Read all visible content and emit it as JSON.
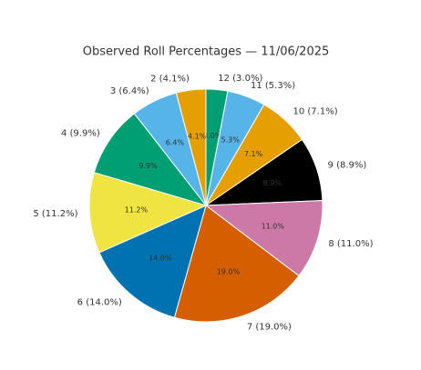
{
  "chart_data": {
    "type": "pie",
    "title": "Observed Roll Percentages — 11/06/2025",
    "labels": [
      "12 (3.0%)",
      "11 (5.3%)",
      "10 (7.1%)",
      "9 (8.9%)",
      "8 (11.0%)",
      "7 (19.0%)",
      "6 (14.0%)",
      "5 (11.2%)",
      "4 (9.9%)",
      "3 (6.4%)",
      "2 (4.1%)"
    ],
    "values": [
      3.0,
      5.3,
      7.1,
      8.9,
      11.0,
      19.0,
      14.0,
      11.2,
      9.9,
      6.4,
      4.1
    ],
    "value_labels": [
      "3.0%",
      "5.3%",
      "7.1%",
      "8.9%",
      "11.0%",
      "19.0%",
      "14.0%",
      "11.2%",
      "9.9%",
      "6.4%",
      "4.1%"
    ],
    "colors": [
      "#009E73",
      "#56B4E9",
      "#E69F00",
      "#000000",
      "#CC79A7",
      "#D55E00",
      "#0072B2",
      "#F0E442",
      "#009E73",
      "#56B4E9",
      "#E69F00"
    ]
  }
}
